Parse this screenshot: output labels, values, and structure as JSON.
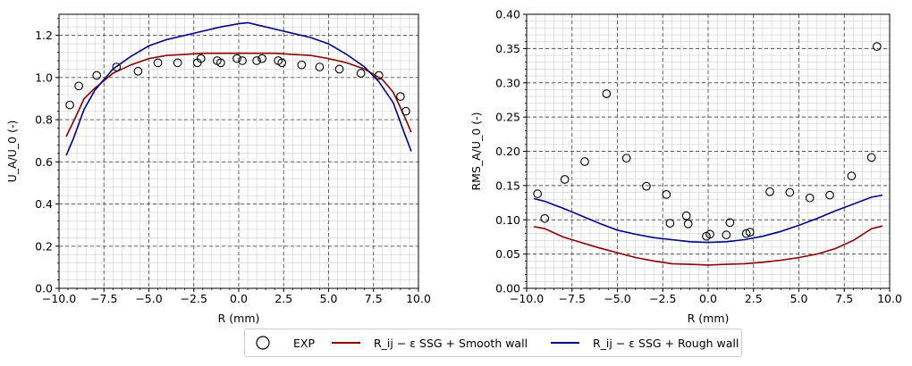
{
  "chart_data": [
    {
      "type": "scatter+line",
      "title": "",
      "xlabel": "R (mm)",
      "ylabel": "U_A/U_0 (-)",
      "xlim": [
        -10,
        10
      ],
      "ylim": [
        0,
        1.3
      ],
      "xticks": [
        "−10.0",
        "−7.5",
        "−5.0",
        "−2.5",
        "0.0",
        "2.5",
        "5.0",
        "7.5",
        "10.0"
      ],
      "xtick_values": [
        -10,
        -7.5,
        -5,
        -2.5,
        0,
        2.5,
        5,
        7.5,
        10
      ],
      "yticks": [
        "0.0",
        "0.2",
        "0.4",
        "0.6",
        "0.8",
        "1.0",
        "1.2"
      ],
      "ytick_values": [
        0,
        0.2,
        0.4,
        0.6,
        0.8,
        1.0,
        1.2
      ],
      "grid": true,
      "series": [
        {
          "name": "EXP",
          "kind": "scatter",
          "color": "#000000",
          "x": [
            -9.4,
            -8.9,
            -7.9,
            -6.8,
            -5.6,
            -4.5,
            -3.4,
            -2.3,
            -2.1,
            -1.2,
            -1.0,
            -0.1,
            0.2,
            1.0,
            1.3,
            2.2,
            2.4,
            3.5,
            4.5,
            5.6,
            6.8,
            7.8,
            9.0,
            9.3
          ],
          "y": [
            0.87,
            0.96,
            1.01,
            1.05,
            1.03,
            1.07,
            1.07,
            1.07,
            1.09,
            1.08,
            1.07,
            1.09,
            1.08,
            1.08,
            1.09,
            1.08,
            1.07,
            1.06,
            1.05,
            1.04,
            1.02,
            1.01,
            0.91,
            0.84
          ]
        },
        {
          "name": "R_ij − ε SSG + Smooth wall",
          "kind": "line",
          "color": "#8b0000",
          "x": [
            -9.6,
            -9.2,
            -8.6,
            -8.0,
            -7.0,
            -6.0,
            -5.0,
            -4.0,
            -3.0,
            -2.0,
            -1.0,
            0.0,
            1.0,
            2.0,
            3.0,
            4.0,
            5.0,
            6.0,
            7.0,
            8.0,
            8.6,
            9.2,
            9.6
          ],
          "y": [
            0.72,
            0.79,
            0.9,
            0.95,
            1.02,
            1.06,
            1.09,
            1.105,
            1.11,
            1.115,
            1.115,
            1.115,
            1.115,
            1.115,
            1.11,
            1.105,
            1.09,
            1.07,
            1.04,
            0.99,
            0.93,
            0.82,
            0.74
          ]
        },
        {
          "name": "R_ij − ε SSG + Rough wall",
          "kind": "line",
          "color": "#00008b",
          "x": [
            -9.6,
            -9.2,
            -8.6,
            -8.0,
            -7.0,
            -6.0,
            -5.0,
            -4.0,
            -3.0,
            -2.0,
            -1.0,
            0.0,
            0.5,
            1.0,
            2.0,
            3.0,
            4.0,
            5.0,
            6.0,
            7.0,
            7.8,
            8.6,
            9.2,
            9.6
          ],
          "y": [
            0.63,
            0.71,
            0.85,
            0.94,
            1.04,
            1.1,
            1.15,
            1.18,
            1.2,
            1.22,
            1.24,
            1.255,
            1.26,
            1.25,
            1.23,
            1.21,
            1.19,
            1.16,
            1.11,
            1.05,
            0.98,
            0.88,
            0.74,
            0.65
          ]
        }
      ]
    },
    {
      "type": "scatter+line",
      "title": "",
      "xlabel": "R (mm)",
      "ylabel": "RMS_A/U_0 (-)",
      "xlim": [
        -10,
        10
      ],
      "ylim": [
        0,
        0.4
      ],
      "xticks": [
        "−10.0",
        "−7.5",
        "−5.0",
        "−2.5",
        "0.0",
        "2.5",
        "5.0",
        "7.5",
        "10.0"
      ],
      "xtick_values": [
        -10,
        -7.5,
        -5,
        -2.5,
        0,
        2.5,
        5,
        7.5,
        10
      ],
      "yticks": [
        "0.00",
        "0.05",
        "0.10",
        "0.15",
        "0.20",
        "0.25",
        "0.30",
        "0.35",
        "0.40"
      ],
      "ytick_values": [
        0,
        0.05,
        0.1,
        0.15,
        0.2,
        0.25,
        0.3,
        0.35,
        0.4
      ],
      "grid": true,
      "series": [
        {
          "name": "EXP",
          "kind": "scatter",
          "color": "#000000",
          "x": [
            -9.4,
            -9.0,
            -7.9,
            -6.8,
            -5.6,
            -4.5,
            -3.4,
            -2.3,
            -2.1,
            -1.2,
            -1.1,
            -0.1,
            0.1,
            1.0,
            1.2,
            2.1,
            2.3,
            3.4,
            4.5,
            5.6,
            6.7,
            7.9,
            9.0,
            9.3
          ],
          "y": [
            0.138,
            0.102,
            0.159,
            0.185,
            0.284,
            0.19,
            0.149,
            0.137,
            0.095,
            0.106,
            0.094,
            0.076,
            0.079,
            0.078,
            0.096,
            0.08,
            0.082,
            0.141,
            0.14,
            0.132,
            0.136,
            0.164,
            0.191,
            0.353
          ]
        },
        {
          "name": "R_ij − ε SSG + Smooth wall",
          "kind": "line",
          "color": "#8b0000",
          "x": [
            -9.6,
            -9.0,
            -8.0,
            -7.0,
            -6.0,
            -5.0,
            -4.0,
            -3.0,
            -2.0,
            -1.0,
            0.0,
            1.0,
            2.0,
            3.0,
            4.0,
            5.0,
            6.0,
            7.0,
            8.0,
            9.0,
            9.6
          ],
          "y": [
            0.09,
            0.087,
            0.075,
            0.067,
            0.059,
            0.052,
            0.045,
            0.04,
            0.036,
            0.035,
            0.034,
            0.035,
            0.036,
            0.038,
            0.041,
            0.045,
            0.05,
            0.058,
            0.07,
            0.087,
            0.091
          ]
        },
        {
          "name": "R_ij − ε SSG + Rough wall",
          "kind": "line",
          "color": "#00008b",
          "x": [
            -9.6,
            -9.0,
            -8.0,
            -7.0,
            -6.0,
            -5.0,
            -4.0,
            -3.0,
            -2.0,
            -1.0,
            0.0,
            1.0,
            2.0,
            3.0,
            4.0,
            5.0,
            6.0,
            7.0,
            8.0,
            9.0,
            9.6
          ],
          "y": [
            0.131,
            0.127,
            0.117,
            0.106,
            0.095,
            0.085,
            0.079,
            0.074,
            0.071,
            0.068,
            0.067,
            0.068,
            0.071,
            0.076,
            0.083,
            0.092,
            0.102,
            0.113,
            0.123,
            0.133,
            0.136
          ]
        }
      ]
    }
  ],
  "legend": {
    "entries": [
      {
        "label": "EXP",
        "color": "#000000",
        "marker": "circle"
      },
      {
        "label": "R_ij − ε SSG + Smooth wall",
        "color": "#8b0000",
        "marker": "line"
      },
      {
        "label": "R_ij − ε SSG + Rough wall",
        "color": "#00008b",
        "marker": "line"
      }
    ]
  }
}
